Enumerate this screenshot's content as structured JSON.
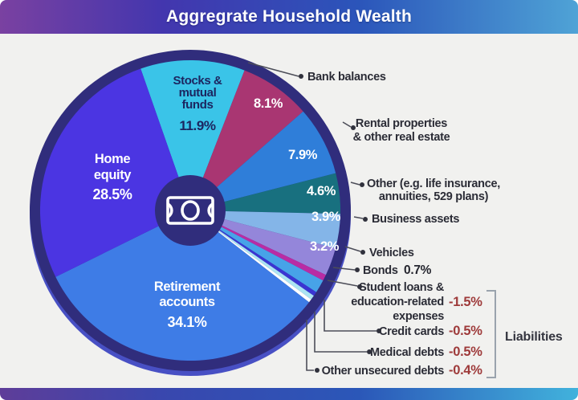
{
  "header": {
    "title": "Aggregrate Household Wealth"
  },
  "colors": {
    "canvas": "#f1f1ef",
    "ring": "#302d7c",
    "ring_shadow": "#4850c4",
    "header_gradient": [
      "#7a41a1",
      "#4336ae",
      "#2b55ba",
      "#4fa3d6"
    ],
    "footer_gradient": [
      "#5e3d99",
      "#3947ae",
      "#2b57b8",
      "#41b2dc"
    ],
    "negative_value": "#9e3a3a",
    "callout_text": "#2b2c36"
  },
  "chart_data": {
    "type": "pie",
    "title": "Aggregrate Household Wealth",
    "units": "%",
    "start_angle_deg": -19.3,
    "legend_position": "callouts-around-pie",
    "slices": [
      {
        "id": "stocks",
        "name": "Stocks & mutual funds",
        "value": 11.9,
        "color": "#3ac4e8",
        "label_lines": [
          "Stocks &",
          "mutual",
          "funds"
        ]
      },
      {
        "id": "bank",
        "name": "Bank balances",
        "value": 8.1,
        "color": "#a93672"
      },
      {
        "id": "rental",
        "name": "Rental properties & other real estate",
        "value": 7.9,
        "color": "#2f7ed9"
      },
      {
        "id": "other_assets",
        "name": "Other (e.g. life insurance, annuities, 529 plans)",
        "value": 4.6,
        "color": "#18707f"
      },
      {
        "id": "business",
        "name": "Business assets",
        "value": 3.9,
        "color": "#84b5e8"
      },
      {
        "id": "vehicles",
        "name": "Vehicles",
        "value": 3.2,
        "color": "#9486da"
      },
      {
        "id": "bonds",
        "name": "Bonds",
        "value": 0.7,
        "color": "#b92ca4"
      },
      {
        "id": "student",
        "name": "Student loans & education-related expenses",
        "value": -1.5,
        "color": "#47a3e8"
      },
      {
        "id": "credit",
        "name": "Credit cards",
        "value": -0.5,
        "color": "#3a35d2"
      },
      {
        "id": "medical",
        "name": "Medical debts",
        "value": -0.5,
        "color": "#abe4f2"
      },
      {
        "id": "unsecured",
        "name": "Other unsecured debts",
        "value": -0.4,
        "color": "#ffffff"
      },
      {
        "id": "retirement",
        "name": "Retirement accounts",
        "value": 34.1,
        "color": "#3e7ce6",
        "label_lines": [
          "Retirement",
          "accounts"
        ]
      },
      {
        "id": "home",
        "name": "Home equity",
        "value": 28.5,
        "color": "#4b35e2",
        "label_lines": [
          "Home",
          "equity"
        ]
      }
    ]
  },
  "callouts": {
    "bank": {
      "label": "Bank balances"
    },
    "rental": {
      "line1": "Rental properties",
      "line2": "& other real estate"
    },
    "other_assets": {
      "line1": "Other (e.g. life insurance,",
      "line2": "annuities, 529 plans)"
    },
    "business": {
      "label": "Business assets"
    },
    "vehicles": {
      "label": "Vehicles"
    },
    "bonds": {
      "label": "Bonds",
      "value_label": "0.7%"
    },
    "student": {
      "line1": "Student loans &",
      "line2": "education-related",
      "line3": "expenses",
      "value_label": "-1.5%"
    },
    "credit": {
      "label": "Credit cards",
      "value_label": "-0.5%"
    },
    "medical": {
      "label": "Medical debts",
      "value_label": "-0.5%"
    },
    "unsecured": {
      "label": "Other unsecured debts",
      "value_label": "-0.4%"
    },
    "liabilities_group": {
      "label": "Liabilities"
    }
  }
}
